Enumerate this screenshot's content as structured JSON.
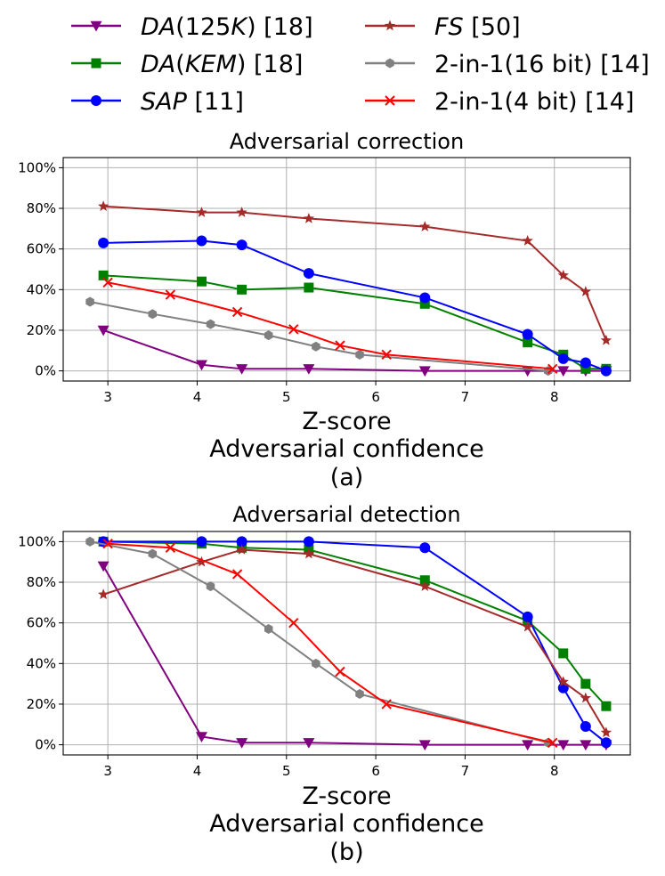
{
  "legend": [
    {
      "name_italic": "DA",
      "name_rest": "(125K) [18]",
      "name_rest_italic": "K",
      "marker": "triangle-down",
      "color": "#800080"
    },
    {
      "name_italic": "DA",
      "name_rest": "(KEM) [18]",
      "name_rest_italic": "KEM",
      "marker": "square",
      "color": "#008000"
    },
    {
      "name_italic": "SAP",
      "name_rest": " [11]",
      "marker": "circle",
      "color": "#0000ff"
    },
    {
      "name_italic": "FS",
      "name_rest": " [50]",
      "marker": "star",
      "color": "#a52a2a"
    },
    {
      "name_italic": "",
      "name_rest": "2-in-1(16 bit) [14]",
      "marker": "hexagon",
      "color": "#808080"
    },
    {
      "name_italic": "",
      "name_rest": "2-in-1(4 bit) [14]",
      "marker": "x",
      "color": "#ff0000"
    }
  ],
  "chart_data": [
    {
      "type": "line",
      "title": "Adversarial correction",
      "xlabel": "Z-score",
      "xlabel2": "Adversarial confidence",
      "caption": "(a)",
      "xlim": [
        2.5,
        8.85
      ],
      "ylim": [
        -5,
        105
      ],
      "xticks": [
        3,
        4,
        5,
        6,
        7,
        8
      ],
      "yticks": [
        0,
        20,
        40,
        60,
        80,
        100
      ],
      "ytick_labels": [
        "0%",
        "20%",
        "40%",
        "60%",
        "80%",
        "100%"
      ],
      "series": [
        {
          "name": "DA(125K) [18]",
          "color": "#800080",
          "marker": "triangle-down",
          "x": [
            2.95,
            4.05,
            4.5,
            5.25,
            6.55,
            7.7,
            8.1,
            8.35,
            8.58
          ],
          "y": [
            20,
            3,
            1,
            1,
            0,
            0,
            0,
            0,
            0
          ]
        },
        {
          "name": "DA(KEM) [18]",
          "color": "#008000",
          "marker": "square",
          "x": [
            2.95,
            4.05,
            4.5,
            5.25,
            6.55,
            7.7,
            8.1,
            8.35,
            8.58
          ],
          "y": [
            47,
            44,
            40,
            41,
            33,
            14,
            8,
            1,
            1
          ]
        },
        {
          "name": "SAP [11]",
          "color": "#0000ff",
          "marker": "circle",
          "x": [
            2.95,
            4.05,
            4.5,
            5.25,
            6.55,
            7.7,
            8.1,
            8.35,
            8.58
          ],
          "y": [
            63,
            64,
            62,
            48,
            36,
            18,
            6,
            4,
            0
          ]
        },
        {
          "name": "FS [50]",
          "color": "#a52a2a",
          "marker": "star",
          "x": [
            2.95,
            4.05,
            4.5,
            5.25,
            6.55,
            7.7,
            8.1,
            8.35,
            8.58
          ],
          "y": [
            81,
            78,
            78,
            75,
            71,
            64,
            47,
            39,
            15
          ]
        },
        {
          "name": "2-in-1(16 bit) [14]",
          "color": "#808080",
          "marker": "hexagon",
          "x": [
            2.8,
            3.5,
            4.15,
            4.8,
            5.33,
            5.82,
            7.93
          ],
          "y": [
            34,
            28,
            23,
            17.5,
            12,
            8,
            0
          ]
        },
        {
          "name": "2-in-1(4 bit) [14]",
          "color": "#ff0000",
          "marker": "x",
          "x": [
            3.0,
            3.7,
            4.45,
            5.08,
            5.6,
            6.12,
            7.98
          ],
          "y": [
            43.5,
            37.5,
            29,
            20.5,
            12.5,
            8,
            1
          ]
        }
      ]
    },
    {
      "type": "line",
      "title": "Adversarial detection",
      "xlabel": "Z-score",
      "xlabel2": "Adversarial confidence",
      "caption": "(b)",
      "xlim": [
        2.5,
        8.85
      ],
      "ylim": [
        -5,
        105
      ],
      "xticks": [
        3,
        4,
        5,
        6,
        7,
        8
      ],
      "yticks": [
        0,
        20,
        40,
        60,
        80,
        100
      ],
      "ytick_labels": [
        "0%",
        "20%",
        "40%",
        "60%",
        "80%",
        "100%"
      ],
      "series": [
        {
          "name": "DA(125K) [18]",
          "color": "#800080",
          "marker": "triangle-down",
          "x": [
            2.95,
            4.05,
            4.5,
            5.25,
            6.55,
            7.7,
            8.1,
            8.35,
            8.58
          ],
          "y": [
            88,
            4,
            1,
            1,
            0,
            0,
            0,
            0,
            0
          ]
        },
        {
          "name": "DA(KEM) [18]",
          "color": "#008000",
          "marker": "square",
          "x": [
            2.95,
            4.05,
            4.5,
            5.25,
            6.55,
            7.7,
            8.1,
            8.35,
            8.58
          ],
          "y": [
            100,
            99,
            97,
            96,
            81,
            61,
            45,
            30,
            19
          ]
        },
        {
          "name": "SAP [11]",
          "color": "#0000ff",
          "marker": "circle",
          "x": [
            2.95,
            4.05,
            4.5,
            5.25,
            6.55,
            7.7,
            8.1,
            8.35,
            8.58
          ],
          "y": [
            100,
            100,
            100,
            100,
            97,
            63,
            28,
            9,
            1
          ]
        },
        {
          "name": "FS [50]",
          "color": "#a52a2a",
          "marker": "star",
          "x": [
            2.95,
            4.05,
            4.5,
            5.25,
            6.55,
            7.7,
            8.1,
            8.35,
            8.58
          ],
          "y": [
            74,
            90,
            96,
            94,
            78,
            58,
            31,
            23,
            6
          ]
        },
        {
          "name": "2-in-1(16 bit) [14]",
          "color": "#808080",
          "marker": "hexagon",
          "x": [
            2.8,
            3.5,
            4.15,
            4.8,
            5.33,
            5.82,
            7.93
          ],
          "y": [
            100,
            94,
            78,
            57,
            40,
            25,
            1
          ]
        },
        {
          "name": "2-in-1(4 bit) [14]",
          "color": "#ff0000",
          "marker": "x",
          "x": [
            3.0,
            3.7,
            4.45,
            5.08,
            5.6,
            6.12,
            7.98
          ],
          "y": [
            99,
            97,
            84,
            60,
            36,
            20,
            1
          ]
        }
      ]
    }
  ]
}
